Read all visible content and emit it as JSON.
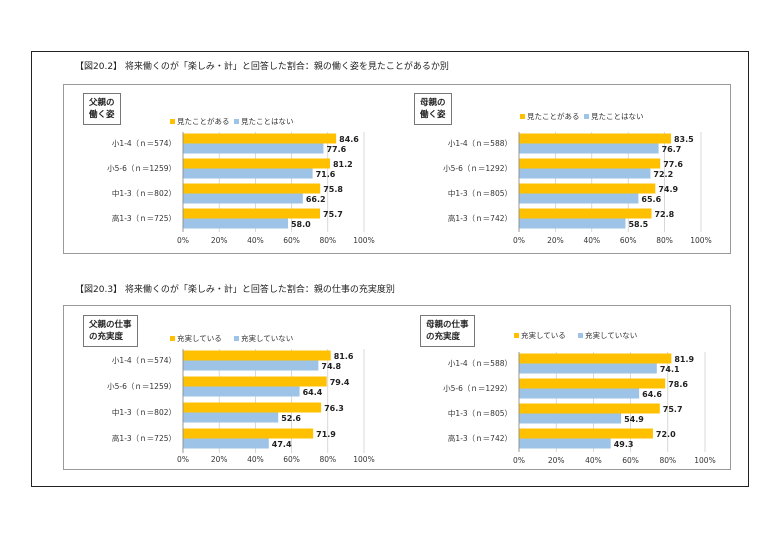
{
  "sections": [
    {
      "title": "【図20.2】 将来働くのが「楽しみ・計」と回答した割合：親の働く姿を見たことがあるか別",
      "charts": [
        {
          "group_label": "父親の\n働く姿",
          "legend": [
            "見たことがある",
            "見たことはない"
          ],
          "categories": [
            "小1-4（ｎ＝574）",
            "小5-6（ｎ＝1259）",
            "中1-3（ｎ＝802）",
            "高1-3（ｎ＝725）"
          ],
          "series": [
            [
              84.6,
              81.2,
              75.8,
              75.7
            ],
            [
              77.6,
              71.6,
              66.2,
              58.0
            ]
          ]
        },
        {
          "group_label": "母親の\n働く姿",
          "legend": [
            "見たことがある",
            "見たことはない"
          ],
          "categories": [
            "小1-4（ｎ＝588）",
            "小5-6（ｎ＝1292）",
            "中1-3（ｎ＝805）",
            "高1-3（ｎ＝742）"
          ],
          "series": [
            [
              83.5,
              77.6,
              74.9,
              72.8
            ],
            [
              76.7,
              72.2,
              65.6,
              58.5
            ]
          ]
        }
      ]
    },
    {
      "title": "【図20.3】 将来働くのが「楽しみ・計」と回答した割合：親の仕事の充実度別",
      "charts": [
        {
          "group_label": "父親の仕事\nの充実度",
          "legend": [
            "充実している",
            "充実していない"
          ],
          "categories": [
            "小1-4（ｎ＝574）",
            "小5-6（ｎ＝1259）",
            "中1-3（ｎ＝802）",
            "高1-3（ｎ＝725）"
          ],
          "series": [
            [
              81.6,
              79.4,
              76.3,
              71.9
            ],
            [
              74.8,
              64.4,
              52.6,
              47.4
            ]
          ]
        },
        {
          "group_label": "母親の仕事\nの充実度",
          "legend": [
            "充実している",
            "充実していない"
          ],
          "categories": [
            "小1-4（ｎ＝588）",
            "小5-6（ｎ＝1292）",
            "中1-3（ｎ＝805）",
            "高1-3（ｎ＝742）"
          ],
          "series": [
            [
              81.9,
              78.6,
              75.7,
              72.0
            ],
            [
              74.1,
              64.6,
              54.9,
              49.3
            ]
          ]
        }
      ]
    }
  ],
  "chart_data": [
    {
      "type": "bar",
      "orientation": "horizontal",
      "categories": [
        "小1-4（ｎ＝574）",
        "小5-6（ｎ＝1259）",
        "中1-3（ｎ＝802）",
        "高1-3（ｎ＝725）"
      ],
      "series": [
        {
          "name": "見たことがある",
          "values": [
            84.6,
            81.2,
            75.8,
            75.7
          ]
        },
        {
          "name": "見たことはない",
          "values": [
            77.6,
            71.6,
            66.2,
            58.0
          ]
        }
      ],
      "xlim": [
        0,
        100
      ],
      "xticks": [
        "0%",
        "20%",
        "40%",
        "60%",
        "80%",
        "100%"
      ],
      "legend": "top-left"
    },
    {
      "type": "bar",
      "orientation": "horizontal",
      "categories": [
        "小1-4（ｎ＝588）",
        "小5-6（ｎ＝1292）",
        "中1-3（ｎ＝805）",
        "高1-3（ｎ＝742）"
      ],
      "series": [
        {
          "name": "見たことがある",
          "values": [
            83.5,
            77.6,
            74.9,
            72.8
          ]
        },
        {
          "name": "見たことはない",
          "values": [
            76.7,
            72.2,
            65.6,
            58.5
          ]
        }
      ],
      "xlim": [
        0,
        100
      ],
      "xticks": [
        "0%",
        "20%",
        "40%",
        "60%",
        "80%",
        "100%"
      ],
      "legend": "top-left"
    },
    {
      "type": "bar",
      "orientation": "horizontal",
      "categories": [
        "小1-4（ｎ＝574）",
        "小5-6（ｎ＝1259）",
        "中1-3（ｎ＝802）",
        "高1-3（ｎ＝725）"
      ],
      "series": [
        {
          "name": "充実している",
          "values": [
            81.6,
            79.4,
            76.3,
            71.9
          ]
        },
        {
          "name": "充実していない",
          "values": [
            74.8,
            64.4,
            52.6,
            47.4
          ]
        }
      ],
      "xlim": [
        0,
        100
      ],
      "xticks": [
        "0%",
        "20%",
        "40%",
        "60%",
        "80%",
        "100%"
      ],
      "legend": "top-left"
    },
    {
      "type": "bar",
      "orientation": "horizontal",
      "categories": [
        "小1-4（ｎ＝588）",
        "小5-6（ｎ＝1292）",
        "中1-3（ｎ＝805）",
        "高1-3（ｎ＝742）"
      ],
      "series": [
        {
          "name": "充実している",
          "values": [
            81.9,
            78.6,
            75.7,
            72.0
          ]
        },
        {
          "name": "充実していない",
          "values": [
            74.1,
            64.6,
            54.9,
            49.3
          ]
        }
      ],
      "xlim": [
        0,
        100
      ],
      "xticks": [
        "0%",
        "20%",
        "40%",
        "60%",
        "80%",
        "100%"
      ],
      "legend": "top-left"
    }
  ],
  "axis_ticks": [
    "0%",
    "20%",
    "40%",
    "60%",
    "80%",
    "100%"
  ],
  "colors": {
    "series_1": "#ffc000",
    "series_2": "#9dc3e6",
    "gridline": "#bfbfbf",
    "panel_border": "#9a9a9a"
  }
}
